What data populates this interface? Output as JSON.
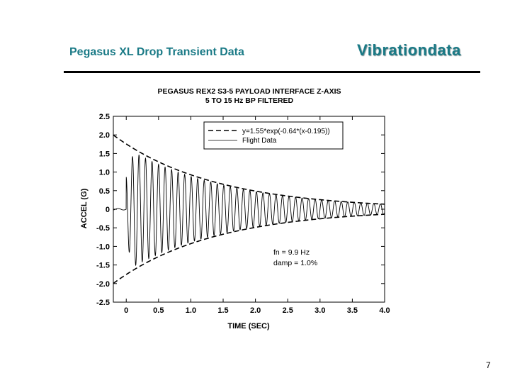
{
  "slide": {
    "title": "Pegasus XL Drop Transient Data",
    "brand": "Vibrationdata",
    "page_number": "7"
  },
  "chart_data": {
    "type": "line",
    "title": "PEGASUS REX2  S3-5  PAYLOAD INTERFACE  Z-AXIS",
    "subtitle": "5 TO 15 Hz BP FILTERED",
    "xlabel": "TIME (SEC)",
    "ylabel": "ACCEL (G)",
    "xlim": [
      -0.2,
      4.0
    ],
    "ylim": [
      -2.5,
      2.5
    ],
    "x_ticks": [
      0,
      0.5,
      1.0,
      1.5,
      2.0,
      2.5,
      3.0,
      3.5,
      4.0
    ],
    "x_tick_labels": [
      "0",
      "0.5",
      "1.0",
      "1.5",
      "2.0",
      "2.5",
      "3.0",
      "3.5",
      "4.0"
    ],
    "y_ticks": [
      2.5,
      2.0,
      1.5,
      1.0,
      0.5,
      0,
      -0.5,
      -1.0,
      -1.5,
      -2.0,
      -2.5
    ],
    "y_tick_labels": [
      "2.5",
      "2.0",
      "1.5",
      "1.0",
      "0.5",
      "0",
      "-0.5",
      "-1.0",
      "-1.5",
      "-2.0",
      "-2.5"
    ],
    "grid": false,
    "legend_position": "top-right",
    "series": [
      {
        "name": "y=1.55*exp(-0.64*(x-0.195))",
        "style": "dashed",
        "kind": "envelope",
        "amplitude": 1.55,
        "decay_rate": 0.64,
        "time_offset": 0.195,
        "x_start": -0.2
      },
      {
        "name": "Flight Data",
        "style": "solid",
        "kind": "decaying_sine",
        "frequency_hz": 9.9,
        "damping_ratio": 0.01,
        "peak": 1.55,
        "onset_time": 0.0,
        "pre_onset_level": 0.02,
        "x_end": 4.0
      }
    ],
    "annotations": [
      "fn = 9.9 Hz",
      "damp = 1.0%"
    ]
  },
  "colors": {
    "title": "#1a7a86",
    "brand": "#1a7a86",
    "trace": "#000000"
  }
}
